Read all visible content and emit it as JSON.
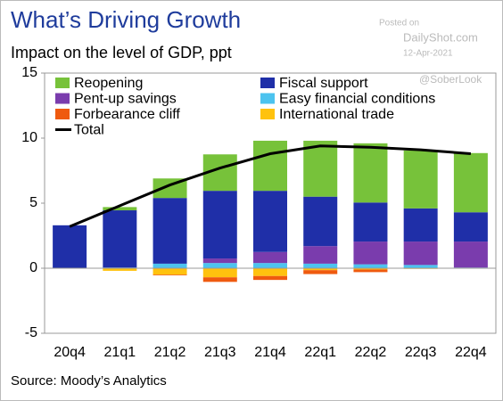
{
  "chart_data": {
    "type": "stacked_bar_line",
    "title": "What’s Driving Growth",
    "subtitle": "Impact on the level of GDP, ppt",
    "source": "Source: Moody’s Analytics",
    "watermark": [
      "Posted on",
      "DailyShot.com",
      "12-Apr-2021",
      "@SoberLook"
    ],
    "categories": [
      "20q4",
      "21q1",
      "21q2",
      "21q3",
      "21q4",
      "22q1",
      "22q2",
      "22q3",
      "22q4"
    ],
    "series": [
      {
        "name": "Reopening",
        "color": "#77c23a",
        "values": [
          0,
          0.25,
          1.5,
          2.8,
          3.85,
          4.3,
          4.55,
          4.45,
          4.55
        ]
      },
      {
        "name": "Fiscal support",
        "color": "#1f2fa8",
        "values": [
          3.3,
          4.4,
          5.05,
          5.2,
          4.7,
          3.8,
          3.0,
          2.55,
          2.25
        ]
      },
      {
        "name": "Pent-up savings",
        "color": "#7a3cad",
        "values": [
          0,
          0,
          0,
          0.35,
          0.85,
          1.35,
          1.75,
          1.8,
          2.0
        ]
      },
      {
        "name": "Easy financial conditions",
        "color": "#4cc3ef",
        "values": [
          0,
          0.05,
          0.35,
          0.4,
          0.4,
          0.35,
          0.3,
          0.25,
          0.05
        ]
      },
      {
        "name": "Forbearance cliff",
        "color": "#ef5a0f",
        "values": [
          0,
          0,
          -0.05,
          -0.35,
          -0.3,
          -0.3,
          -0.2,
          0,
          0
        ]
      },
      {
        "name": "International trade",
        "color": "#ffc20e",
        "values": [
          0,
          -0.2,
          -0.5,
          -0.7,
          -0.6,
          -0.15,
          -0.1,
          -0.05,
          0
        ]
      },
      {
        "name": "Total",
        "type": "line",
        "color": "#000000",
        "values": [
          3.2,
          4.8,
          6.4,
          7.7,
          8.8,
          9.4,
          9.3,
          9.1,
          8.8
        ]
      }
    ],
    "ylim": [
      -5,
      15
    ],
    "yticks": [
      -5,
      0,
      5,
      10,
      15
    ]
  }
}
